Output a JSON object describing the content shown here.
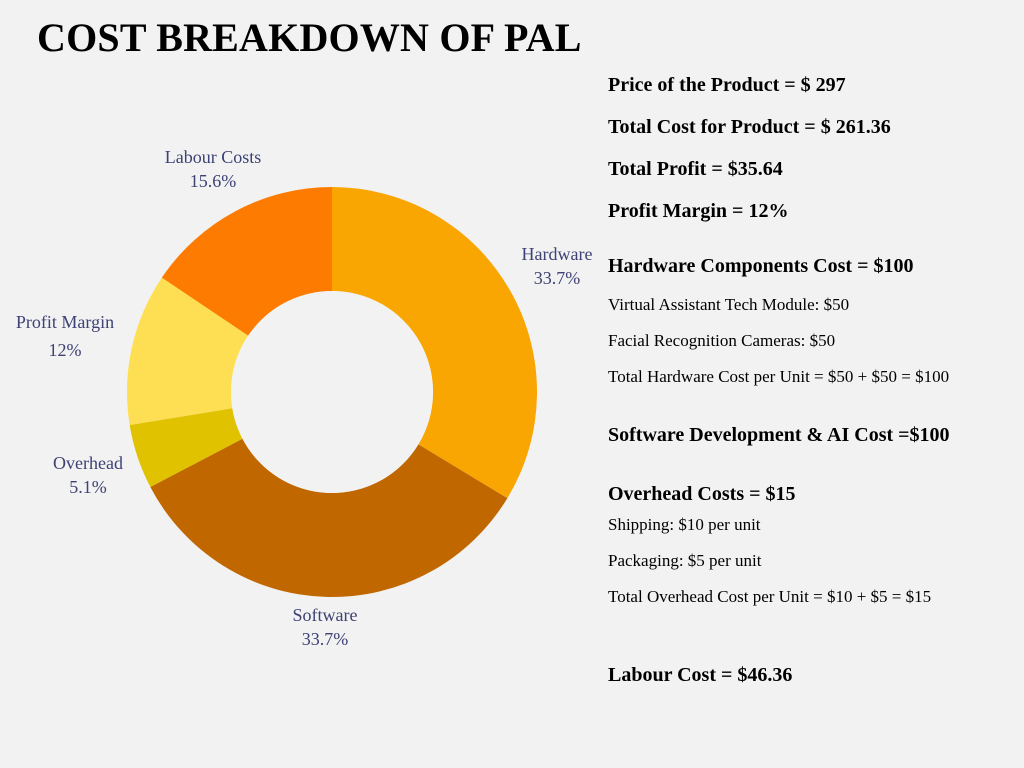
{
  "title": "COST BREAKDOWN OF PAL",
  "chart_data": {
    "type": "pie",
    "variant": "donut",
    "categories": [
      "Hardware",
      "Software",
      "Overhead",
      "Profit Margin",
      "Labour Costs"
    ],
    "values": [
      33.7,
      33.7,
      5.1,
      12,
      15.6
    ],
    "value_labels": [
      "33.7%",
      "33.7%",
      "5.1%",
      "12%",
      "15.6%"
    ],
    "colors": [
      "#f9a602",
      "#c06700",
      "#e0c200",
      "#fede52",
      "#fd7b00"
    ],
    "title": "",
    "start": "12 o'clock",
    "direction": "clockwise"
  },
  "info": {
    "price": "Price of the Product = $ 297",
    "total_cost": "Total Cost for Product = $ 261.36",
    "total_profit": "Total Profit = $35.64",
    "profit_margin": "Profit Margin = 12%",
    "hardware_heading": "Hardware Components Cost = $100",
    "hardware_item1": "Virtual Assistant Tech Module: $50",
    "hardware_item2": "Facial Recognition Cameras: $50",
    "hardware_total": "Total Hardware Cost per Unit = $50 + $50  = $100",
    "software_heading": "Software Development & AI Cost =$100",
    "overhead_heading": "Overhead Costs = $15",
    "overhead_item1": "Shipping: $10 per unit",
    "overhead_item2": "Packaging: $5 per unit",
    "overhead_total": "Total Overhead Cost per Unit = $10 + $5 = $15",
    "labour_heading": "Labour Cost = $46.36"
  }
}
